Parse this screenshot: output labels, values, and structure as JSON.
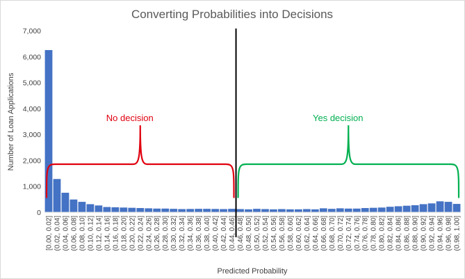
{
  "chart_data": {
    "type": "bar",
    "title": "Converting Probabilities into Decisions",
    "xlabel": "Predicted Probability",
    "ylabel": "Number of Loan Applications",
    "ylim": [
      0,
      7000
    ],
    "yticks": [
      "0",
      "1,000",
      "2,000",
      "3,000",
      "4,000",
      "5,000",
      "6,000",
      "7,000"
    ],
    "grid": false,
    "bar_color": "#4472c4",
    "categories": [
      "[0.00, 0.02]",
      "(0.02, 0.04]",
      "(0.04, 0.06]",
      "(0.06, 0.08]",
      "(0.08, 0.10]",
      "(0.10, 0.12]",
      "(0.12, 0.14]",
      "(0.14, 0.16]",
      "(0.16, 0.18]",
      "(0.18, 0.20]",
      "(0.20, 0.22]",
      "(0.22, 0.24]",
      "(0.24, 0.26]",
      "(0.26, 0.28]",
      "(0.28, 0.30]",
      "(0.30, 0.32]",
      "(0.32, 0.34]",
      "(0.34, 0.36]",
      "(0.36, 0.38]",
      "(0.38, 0.40]",
      "(0.40, 0.42]",
      "(0.42, 0.44]",
      "(0.44, 0.46]",
      "(0.46, 0.48]",
      "(0.48, 0.50]",
      "(0.50, 0.52]",
      "(0.52, 0.54]",
      "(0.54, 0.56]",
      "(0.56, 0.58]",
      "(0.58, 0.60]",
      "(0.60, 0.62]",
      "(0.62, 0.64]",
      "(0.64, 0.66]",
      "(0.66, 0.68]",
      "(0.68, 0.70]",
      "(0.70, 0.72]",
      "(0.72, 0.74]",
      "(0.74, 0.76]",
      "(0.76, 0.78]",
      "(0.78, 0.80]",
      "(0.80, 0.82]",
      "(0.82, 0.84]",
      "(0.84, 0.86]",
      "(0.86, 0.88]",
      "(0.88, 0.90]",
      "(0.90, 0.92]",
      "(0.92, 0.94]",
      "(0.94, 0.96]",
      "(0.96, 0.98]",
      "(0.98, 1.00]"
    ],
    "values": [
      6250,
      1280,
      750,
      490,
      400,
      310,
      260,
      200,
      190,
      180,
      170,
      160,
      150,
      140,
      140,
      130,
      120,
      125,
      130,
      130,
      125,
      120,
      130,
      120,
      110,
      130,
      120,
      110,
      120,
      110,
      110,
      120,
      110,
      150,
      130,
      150,
      140,
      140,
      160,
      170,
      180,
      210,
      230,
      250,
      270,
      310,
      340,
      420,
      400,
      320
    ],
    "threshold": 0.46,
    "annotations": [
      {
        "text": "No decision",
        "color": "#e0000f",
        "brace_range": [
          0.0,
          0.46
        ]
      },
      {
        "text": "Yes decision",
        "color": "#00b050",
        "brace_range": [
          0.46,
          1.0
        ]
      }
    ]
  }
}
